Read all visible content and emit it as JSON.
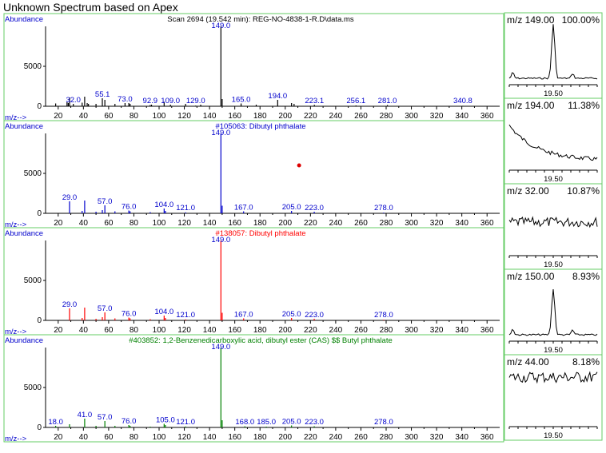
{
  "app": {
    "title": "Unknown Spectrum based on Apex"
  },
  "colors": {
    "frame": "#66cc66",
    "label": "#0000cc",
    "unknown": "#000000",
    "hit1": "#0000cc",
    "hit2": "#ff0000",
    "hit3": "#008000",
    "dot": "#dd0000"
  },
  "axis": {
    "ylabel": "Abundance",
    "xlabel": "m/z-->",
    "xmin": 10,
    "xmax": 370,
    "xticks": [
      20,
      40,
      60,
      80,
      100,
      120,
      140,
      160,
      180,
      200,
      220,
      240,
      260,
      280,
      300,
      320,
      340,
      360
    ],
    "yticks": [
      0,
      5000
    ]
  },
  "chart_data": [
    {
      "type": "bar",
      "title": "Scan 2694 (19.542 min): REG-NO-4838-1-R.D\\data.ms",
      "title_color": "#000000",
      "ylim": [
        0,
        10000
      ],
      "x": [
        18,
        27,
        28,
        29,
        32,
        39,
        41,
        43,
        44,
        50,
        55,
        57,
        65,
        73,
        76,
        77,
        92.9,
        94,
        104,
        109,
        121,
        129,
        133,
        149,
        150,
        165,
        177,
        194,
        205,
        207,
        223.1,
        256.1,
        281,
        340.8
      ],
      "values": [
        350,
        500,
        400,
        1100,
        300,
        450,
        1200,
        400,
        300,
        300,
        1000,
        800,
        300,
        400,
        400,
        300,
        150,
        200,
        550,
        200,
        300,
        80,
        200,
        9999,
        900,
        350,
        200,
        800,
        400,
        300,
        180,
        100,
        150,
        60
      ],
      "labels": [
        {
          "x": 32.0,
          "text": "32.0"
        },
        {
          "x": 55.1,
          "text": "55.1"
        },
        {
          "x": 73.0,
          "text": "73.0"
        },
        {
          "x": 92.9,
          "text": "92.9"
        },
        {
          "x": 109.0,
          "text": "109.0"
        },
        {
          "x": 129.0,
          "text": "129.0"
        },
        {
          "x": 149.0,
          "text": "149.0",
          "top": true
        },
        {
          "x": 165.0,
          "text": "165.0"
        },
        {
          "x": 194.0,
          "text": "194.0"
        },
        {
          "x": 223.1,
          "text": "223.1"
        },
        {
          "x": 256.1,
          "text": "256.1"
        },
        {
          "x": 281.0,
          "text": "281.0"
        },
        {
          "x": 340.8,
          "text": "340.8"
        }
      ]
    },
    {
      "type": "bar",
      "title": "#105063: Dibutyl phthalate",
      "title_color": "#0000cc",
      "ylim": [
        0,
        10000
      ],
      "x": [
        29,
        39,
        41,
        50,
        55,
        57,
        65,
        76,
        77,
        93,
        104,
        105,
        121,
        149,
        150,
        167,
        205,
        223,
        278
      ],
      "values": [
        1500,
        300,
        1600,
        200,
        400,
        1000,
        250,
        350,
        250,
        150,
        600,
        300,
        120,
        9999,
        950,
        250,
        300,
        200,
        80
      ],
      "labels": [
        {
          "x": 29.0,
          "text": "29.0"
        },
        {
          "x": 57.0,
          "text": "57.0"
        },
        {
          "x": 76.0,
          "text": "76.0"
        },
        {
          "x": 104.0,
          "text": "104.0"
        },
        {
          "x": 121.0,
          "text": "121.0"
        },
        {
          "x": 149.0,
          "text": "149.0",
          "top": true
        },
        {
          "x": 167.0,
          "text": "167.0"
        },
        {
          "x": 205.0,
          "text": "205.0"
        },
        {
          "x": 223.0,
          "text": "223.0"
        },
        {
          "x": 278.0,
          "text": "278.0"
        }
      ],
      "marker": {
        "x": 211,
        "y": 6000
      }
    },
    {
      "type": "bar",
      "title": "#138057: Dibutyl phthalate",
      "title_color": "#ff0000",
      "ylim": [
        0,
        10000
      ],
      "x": [
        29,
        39,
        41,
        50,
        55,
        57,
        65,
        76,
        77,
        93,
        104,
        105,
        121,
        149,
        150,
        167,
        205,
        223,
        278
      ],
      "values": [
        1500,
        300,
        1600,
        200,
        400,
        1000,
        250,
        350,
        250,
        150,
        600,
        300,
        120,
        9999,
        950,
        250,
        300,
        200,
        80
      ],
      "labels": [
        {
          "x": 29.0,
          "text": "29.0"
        },
        {
          "x": 57.0,
          "text": "57.0"
        },
        {
          "x": 76.0,
          "text": "76.0"
        },
        {
          "x": 104.0,
          "text": "104.0"
        },
        {
          "x": 121.0,
          "text": "121.0"
        },
        {
          "x": 149.0,
          "text": "149.0",
          "top": true
        },
        {
          "x": 167.0,
          "text": "167.0"
        },
        {
          "x": 205.0,
          "text": "205.0"
        },
        {
          "x": 223.0,
          "text": "223.0"
        },
        {
          "x": 278.0,
          "text": "278.0"
        }
      ]
    },
    {
      "type": "bar",
      "title": "#403852: 1,2-Benzenedicarboxylic acid, dibutyl ester (CAS) $$ Butyl phthalate",
      "title_color": "#008000",
      "ylim": [
        0,
        10000
      ],
      "x": [
        18,
        29,
        41,
        50,
        57,
        65,
        76,
        77,
        93,
        104,
        105,
        121,
        149,
        150,
        168,
        185,
        205,
        223,
        278
      ],
      "values": [
        200,
        400,
        1100,
        200,
        800,
        200,
        300,
        200,
        100,
        450,
        300,
        120,
        9999,
        900,
        150,
        100,
        250,
        150,
        60
      ],
      "labels": [
        {
          "x": 18.0,
          "text": "18.0"
        },
        {
          "x": 41.0,
          "text": "41.0"
        },
        {
          "x": 57.0,
          "text": "57.0"
        },
        {
          "x": 76.0,
          "text": "76.0"
        },
        {
          "x": 105.0,
          "text": "105.0"
        },
        {
          "x": 121.0,
          "text": "121.0"
        },
        {
          "x": 149.0,
          "text": "149.0",
          "top": true
        },
        {
          "x": 168.0,
          "text": "168.0"
        },
        {
          "x": 185.0,
          "text": "185.0"
        },
        {
          "x": 205.0,
          "text": "205.0"
        },
        {
          "x": 223.0,
          "text": "223.0"
        },
        {
          "x": 278.0,
          "text": "278.0"
        }
      ]
    }
  ],
  "chromatograms": [
    {
      "mz": "m/z 149.00",
      "pct": "100.00%",
      "kind": "peak",
      "height": 1.0,
      "xtick": "19.50"
    },
    {
      "mz": "m/z 194.00",
      "pct": "11.38%",
      "kind": "decay",
      "xtick": "19.50"
    },
    {
      "mz": "m/z 32.00",
      "pct": "10.87%",
      "kind": "noise",
      "xtick": "19.50"
    },
    {
      "mz": "m/z 150.00",
      "pct": "8.93%",
      "kind": "peak",
      "height": 0.85,
      "xtick": "19.50"
    },
    {
      "mz": "m/z 44.00",
      "pct": "8.18%",
      "kind": "noise2",
      "xtick": "19.50"
    }
  ]
}
